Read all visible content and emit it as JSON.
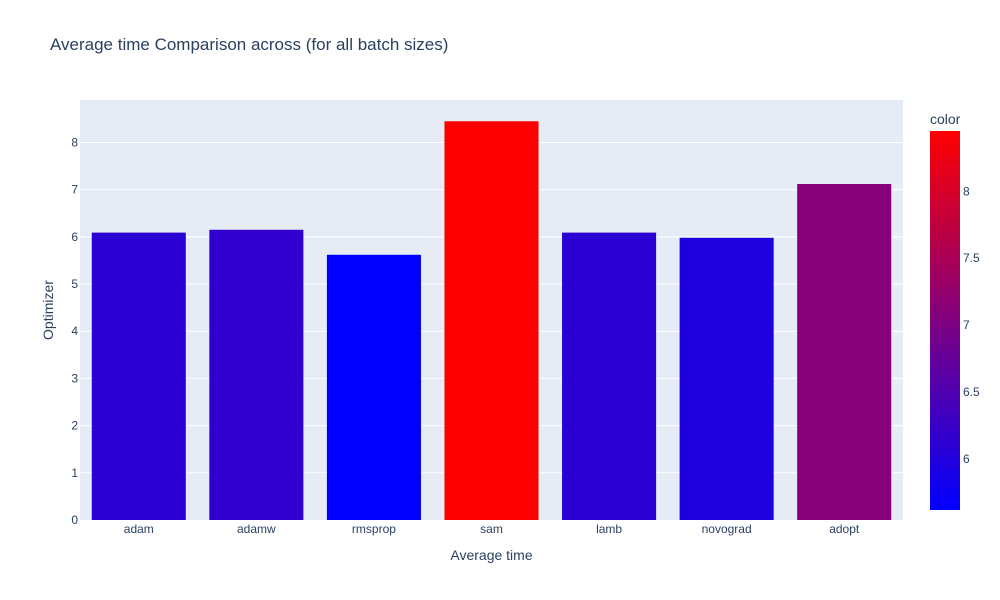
{
  "chart_data": {
    "type": "bar",
    "title": "Average time Comparison across (for all batch sizes)",
    "xlabel": "Average time",
    "ylabel": "Optimizer",
    "categories": [
      "adam",
      "adamw",
      "rmsprop",
      "sam",
      "lamb",
      "novograd",
      "adopt"
    ],
    "values": [
      6.09,
      6.15,
      5.62,
      8.45,
      6.09,
      5.98,
      7.12
    ],
    "ylim": [
      0,
      8.9
    ],
    "yticks": [
      0,
      1,
      2,
      3,
      4,
      5,
      6,
      7,
      8
    ],
    "grid": true,
    "colorbar": {
      "title": "color",
      "range": [
        5.62,
        8.45
      ],
      "ticks": [
        6,
        6.5,
        7,
        7.5,
        8
      ],
      "colors": [
        "#0000ff",
        "#ff0000"
      ]
    }
  }
}
